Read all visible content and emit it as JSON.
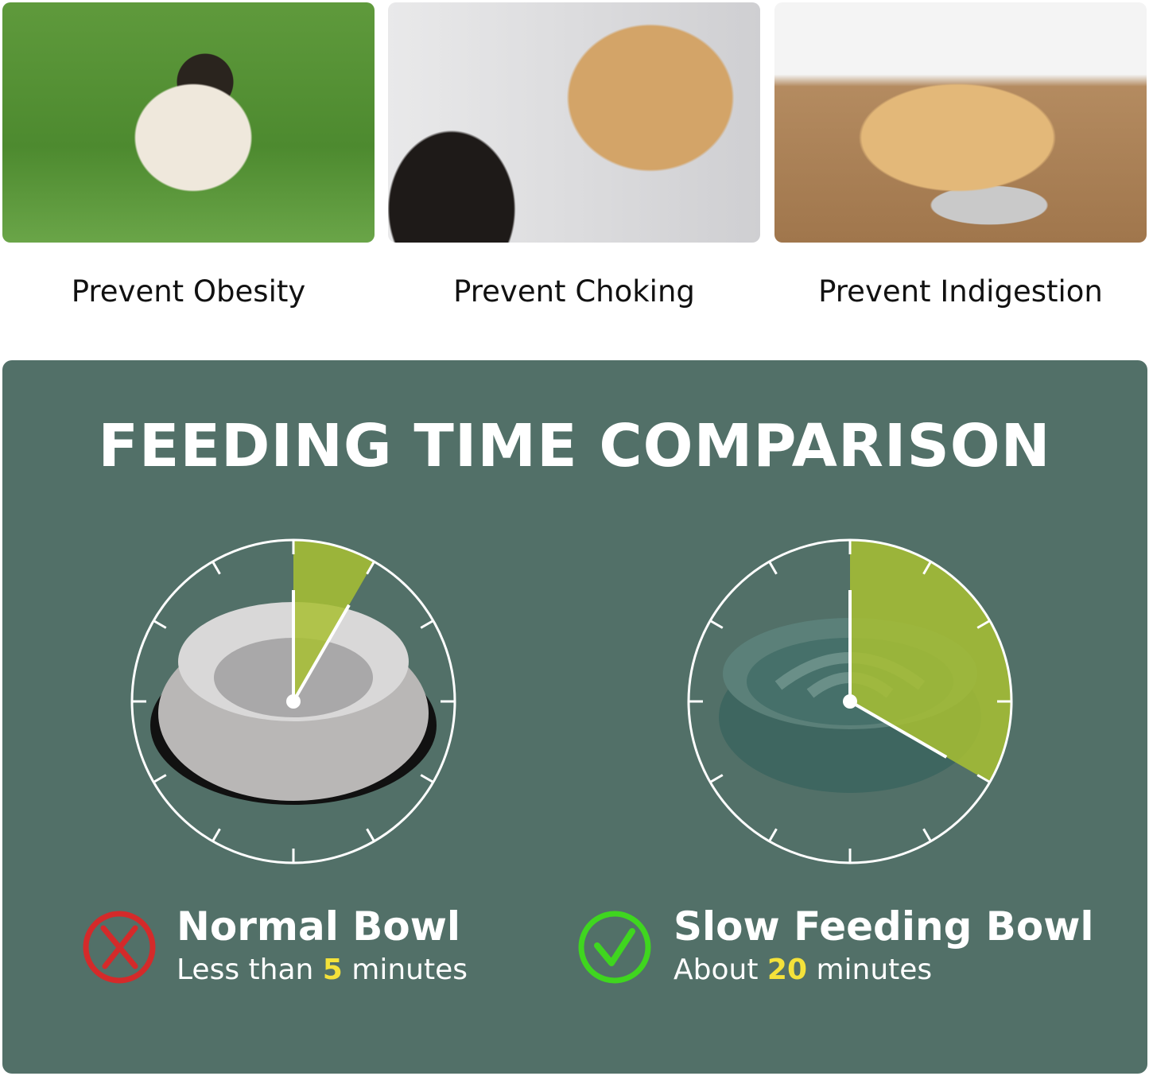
{
  "benefits": [
    {
      "label": "Prevent Obesity",
      "image": "pug-on-grass"
    },
    {
      "label": "Prevent Choking",
      "image": "dog-mouth-check"
    },
    {
      "label": "Prevent Indigestion",
      "image": "dog-lying-by-bowl"
    }
  ],
  "comparison": {
    "title": "FEEDING TIME COMPARISON",
    "accent_color": "#a8c032",
    "highlight_color": "#f4e23a",
    "bowls": [
      {
        "name": "Normal Bowl",
        "prefix": "Less than ",
        "value": "5",
        "suffix": " minutes",
        "minutes": 5,
        "status": "bad",
        "status_icon": "x-circle-icon",
        "status_color": "#d42a2a"
      },
      {
        "name": "Slow Feeding Bowl",
        "prefix": "About ",
        "value": "20",
        "suffix": " minutes",
        "minutes": 20,
        "status": "good",
        "status_icon": "check-circle-icon",
        "status_color": "#3fd61f"
      }
    ]
  }
}
